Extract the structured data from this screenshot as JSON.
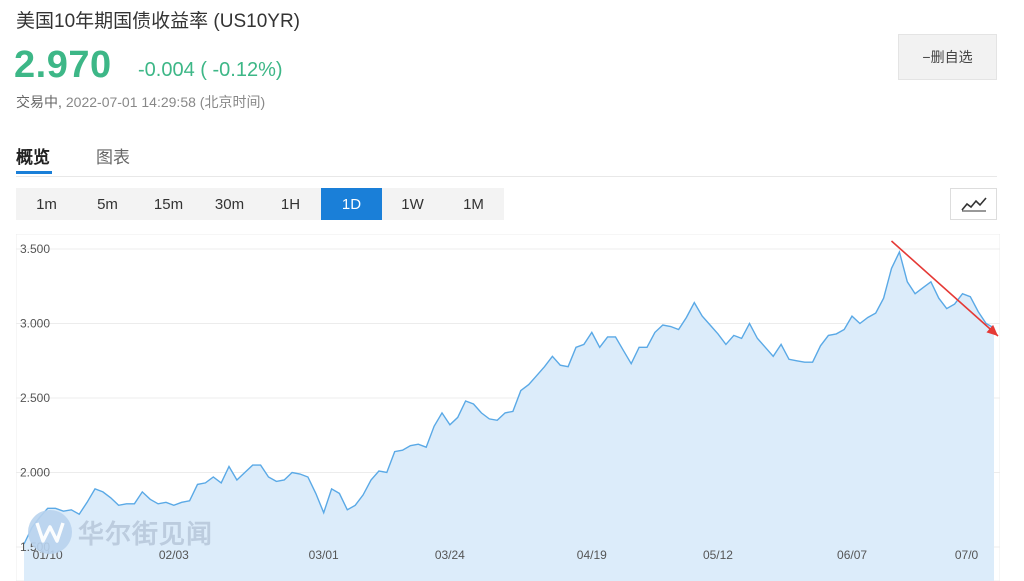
{
  "header": {
    "title": "美国10年期国债收益率  (US10YR)",
    "price": "2.970",
    "change": "-0.004 ( -0.12%)",
    "status": "交易中,",
    "timestamp": "2022-07-01 14:29:58 (北京时间)",
    "watchlist_button": "−删自选"
  },
  "tabs": [
    {
      "label": "概览",
      "active": true
    },
    {
      "label": "图表",
      "active": false
    }
  ],
  "periods": [
    {
      "label": "1m",
      "active": false
    },
    {
      "label": "5m",
      "active": false
    },
    {
      "label": "15m",
      "active": false
    },
    {
      "label": "30m",
      "active": false
    },
    {
      "label": "1H",
      "active": false
    },
    {
      "label": "1D",
      "active": true
    },
    {
      "label": "1W",
      "active": false
    },
    {
      "label": "1M",
      "active": false
    }
  ],
  "chart_type_icon": "line-chart-icon",
  "colors": {
    "up_green": "#3db787",
    "accent_blue": "#1a7fd8",
    "line": "#5aa9e6",
    "fill": "#dcecfa",
    "annotation_arrow": "#e53935"
  },
  "watermark_text": "华尔街见闻",
  "chart_data": {
    "type": "area",
    "ylim": [
      1.5,
      3.6
    ],
    "y_ticks": [
      "3.500",
      "3.000",
      "2.500",
      "2.000",
      "1.500"
    ],
    "y_tick_values": [
      3.5,
      3.0,
      2.5,
      2.0,
      1.5
    ],
    "x_tick_labels": [
      "01/10",
      "02/03",
      "03/01",
      "03/24",
      "04/19",
      "05/12",
      "06/07",
      "07/0"
    ],
    "x_tick_index": [
      3,
      19,
      38,
      54,
      72,
      88,
      105,
      121
    ],
    "grid": "horizontal",
    "series": [
      {
        "values": [
          1.52,
          1.63,
          1.7,
          1.76,
          1.76,
          1.74,
          1.75,
          1.72,
          1.8,
          1.89,
          1.87,
          1.83,
          1.78,
          1.79,
          1.79,
          1.87,
          1.82,
          1.79,
          1.8,
          1.78,
          1.8,
          1.81,
          1.92,
          1.93,
          1.97,
          1.93,
          2.04,
          1.95,
          2.0,
          2.05,
          2.05,
          1.97,
          1.94,
          1.95,
          2.0,
          1.99,
          1.97,
          1.86,
          1.73,
          1.89,
          1.86,
          1.75,
          1.78,
          1.85,
          1.95,
          2.01,
          2.0,
          2.14,
          2.15,
          2.18,
          2.19,
          2.17,
          2.31,
          2.4,
          2.32,
          2.37,
          2.48,
          2.46,
          2.4,
          2.36,
          2.35,
          2.4,
          2.41,
          2.55,
          2.59,
          2.65,
          2.71,
          2.78,
          2.72,
          2.71,
          2.84,
          2.86,
          2.94,
          2.84,
          2.91,
          2.91,
          2.82,
          2.73,
          2.84,
          2.84,
          2.94,
          2.99,
          2.98,
          2.96,
          3.04,
          3.14,
          3.05,
          2.99,
          2.93,
          2.86,
          2.92,
          2.9,
          3.0,
          2.9,
          2.84,
          2.78,
          2.86,
          2.76,
          2.75,
          2.74,
          2.74,
          2.85,
          2.92,
          2.93,
          2.96,
          3.05,
          3.0,
          3.04,
          3.07,
          3.17,
          3.37,
          3.48,
          3.28,
          3.2,
          3.24,
          3.28,
          3.17,
          3.1,
          3.13,
          3.2,
          3.18,
          3.08,
          3.0,
          2.97
        ]
      }
    ],
    "annotation": {
      "type": "arrow",
      "from": [
        110,
        3.5
      ],
      "to": [
        124,
        2.97
      ]
    }
  }
}
